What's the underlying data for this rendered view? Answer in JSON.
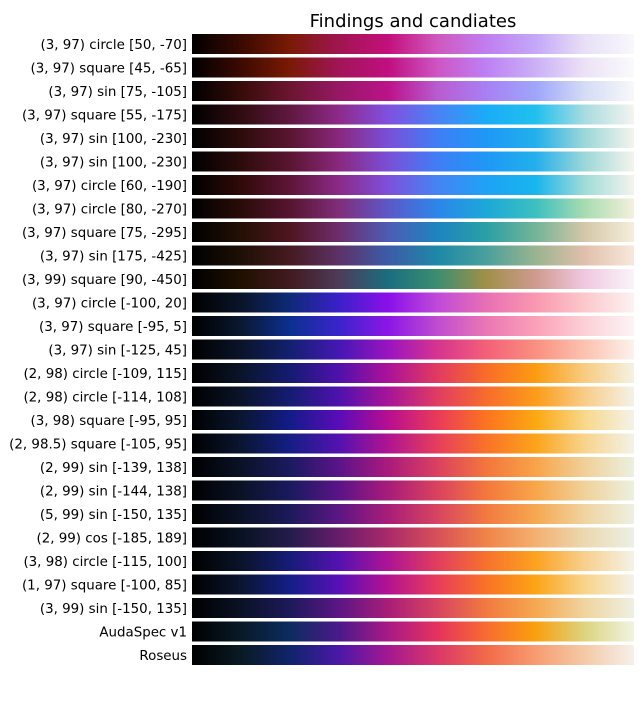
{
  "chart_data": {
    "type": "heatmap",
    "title": "Findings and candiates",
    "xlabel": "",
    "ylabel": "",
    "grid": false,
    "legend": "none",
    "rows": [
      {
        "label": "(3, 97) circle [50, -70]",
        "stops": [
          "#000000",
          "#3a0a00",
          "#7a1a05",
          "#a01550",
          "#c4107c",
          "#cf58bf",
          "#c07ef0",
          "#c4a8f8",
          "#e8e0f6",
          "#f8f8fc"
        ]
      },
      {
        "label": "(3, 97) square [45, -65]",
        "stops": [
          "#000000",
          "#3c0a00",
          "#7a1a04",
          "#a21458",
          "#c00f80",
          "#ce55c4",
          "#bd80f5",
          "#cbb0f6",
          "#ece2f6",
          "#fafafc"
        ]
      },
      {
        "label": "(3, 97) sin [75, -105]",
        "stops": [
          "#000000",
          "#360c08",
          "#6c1530",
          "#961865",
          "#bd128a",
          "#b85cd0",
          "#a880f4",
          "#9fa6fa",
          "#d4dcf6",
          "#f8f8fa"
        ]
      },
      {
        "label": "(3, 97) square [55, -175]",
        "stops": [
          "#000000",
          "#300c10",
          "#601840",
          "#8e2a8a",
          "#8050e0",
          "#4a82f4",
          "#1aacf8",
          "#20c0ee",
          "#a8dce0",
          "#f4f4f0"
        ]
      },
      {
        "label": "(3, 97) sin [100, -230]",
        "stops": [
          "#000000",
          "#2c0c0a",
          "#5a1530",
          "#8a287e",
          "#7a4fd8",
          "#3f7ef6",
          "#1e98f6",
          "#22b0ec",
          "#9cd8d8",
          "#f4f4ee"
        ]
      },
      {
        "label": "(3, 97) sin [100, -230]",
        "stops": [
          "#000000",
          "#2c0c0a",
          "#5a1530",
          "#8a287e",
          "#7a4fd8",
          "#3f7ef6",
          "#1e98f6",
          "#22b0ec",
          "#9cd8d8",
          "#f4f4ee"
        ]
      },
      {
        "label": "(3, 97) circle [60, -190]",
        "stops": [
          "#000000",
          "#300a08",
          "#5e1538",
          "#8c2a88",
          "#7e50dc",
          "#4584f4",
          "#1ea2f6",
          "#18b6ee",
          "#a0dcd8",
          "#f4f4ee"
        ]
      },
      {
        "label": "(3, 97) circle [80, -270]",
        "stops": [
          "#000000",
          "#2a0c06",
          "#561530",
          "#802e7a",
          "#5c58c8",
          "#2c86ea",
          "#1ca8d8",
          "#3cc0c0",
          "#a8dcb0",
          "#f4f0dc"
        ]
      },
      {
        "label": "(3, 97) square [75, -295]",
        "stops": [
          "#000000",
          "#241004",
          "#501520",
          "#6e2e6e",
          "#4d5cb4",
          "#1e84c0",
          "#2aa0a6",
          "#74b498",
          "#d4c8a8",
          "#f6eedc"
        ]
      },
      {
        "label": "(3, 97) sin [175, -425]",
        "stops": [
          "#000000",
          "#1e1004",
          "#461a20",
          "#5c3268",
          "#3c5ca8",
          "#1e88a8",
          "#4aa09c",
          "#9ab490",
          "#e0c0ac",
          "#f8e8dc"
        ]
      },
      {
        "label": "(3, 99) square [90, -450]",
        "stops": [
          "#000000",
          "#201000",
          "#421a20",
          "#4e3c5a",
          "#1a6e80",
          "#3c8e70",
          "#a09048",
          "#d09a90",
          "#f0c8e0",
          "#faf4fa"
        ]
      },
      {
        "label": "(3, 97) circle [-100, 20]",
        "stops": [
          "#000000",
          "#0a1428",
          "#0e2a78",
          "#3a20c8",
          "#8a10ea",
          "#c04ad8",
          "#e870b4",
          "#fa98b0",
          "#fcc8cc",
          "#fcf2f2"
        ]
      },
      {
        "label": "(3, 97) square [-95, 5]",
        "stops": [
          "#000000",
          "#0a1830",
          "#0c3090",
          "#3a24cc",
          "#8c16e6",
          "#c04cd0",
          "#ea78b4",
          "#fca0b8",
          "#fcd0d6",
          "#fcf4f6"
        ]
      },
      {
        "label": "(3, 97) sin [-125, 45]",
        "stops": [
          "#000000",
          "#0a1428",
          "#122070",
          "#4418b4",
          "#9a14c0",
          "#d6348e",
          "#f46078",
          "#fa9080",
          "#fcc2b0",
          "#fcf2ec"
        ]
      },
      {
        "label": "(2, 98) circle [-109, 115]",
        "stops": [
          "#000000",
          "#0a1428",
          "#141c70",
          "#5010ae",
          "#ac1298",
          "#e23a60",
          "#fa6c28",
          "#fc9c10",
          "#f8cc80",
          "#f4f2e4"
        ]
      },
      {
        "label": "(2, 98) circle [-114, 108]",
        "stops": [
          "#000000",
          "#0a1428",
          "#141c72",
          "#4e12ae",
          "#a81498",
          "#e03c62",
          "#f86c2c",
          "#fc9c18",
          "#f8cc88",
          "#f4f2e6"
        ]
      },
      {
        "label": "(3, 98) square [-95, 95]",
        "stops": [
          "#000000",
          "#0a1630",
          "#121c88",
          "#5a0cb8",
          "#b80e90",
          "#ea3a5a",
          "#fc7420",
          "#fca810",
          "#f8d88a",
          "#f4f2e8"
        ]
      },
      {
        "label": "(2, 98.5) square [-105, 95]",
        "stops": [
          "#000000",
          "#0a1630",
          "#141e84",
          "#5412b0",
          "#b01490",
          "#e63e5c",
          "#fa7228",
          "#fca41a",
          "#f8d48c",
          "#f4f2e8"
        ]
      },
      {
        "label": "(2, 99) sin [-139, 138]",
        "stops": [
          "#000000",
          "#0a1226",
          "#1a1a60",
          "#5a148a",
          "#aa1a7c",
          "#dc4060",
          "#f4763c",
          "#f8a448",
          "#f0d098",
          "#ecf0e0"
        ]
      },
      {
        "label": "(2, 99) sin [-144, 138]",
        "stops": [
          "#000000",
          "#0a1226",
          "#1a1a5e",
          "#5a1488",
          "#a81c7a",
          "#da425e",
          "#f4783c",
          "#f8a64a",
          "#f0d29a",
          "#ecf0e0"
        ]
      },
      {
        "label": "(5, 99) sin [-150, 135]",
        "stops": [
          "#000000",
          "#0a1226",
          "#1c1a5a",
          "#5c1684",
          "#a81e78",
          "#d84460",
          "#f27a40",
          "#f6a850",
          "#f0d4a0",
          "#eef0e2"
        ]
      },
      {
        "label": "(2, 99) cos [-185, 189]",
        "stops": [
          "#000000",
          "#081222",
          "#241c4c",
          "#681c6c",
          "#aa2a6a",
          "#d85058",
          "#f08448",
          "#f4b070",
          "#ecd8b0",
          "#ecf0e4"
        ]
      },
      {
        "label": "(3, 98) circle [-115, 100]",
        "stops": [
          "#000000",
          "#0a1428",
          "#161c78",
          "#5412b0",
          "#ae1494",
          "#e23e5e",
          "#f8722c",
          "#fca220",
          "#f8d08e",
          "#f4f2e6"
        ]
      },
      {
        "label": "(1, 97) square [-100, 85]",
        "stops": [
          "#000000",
          "#0a1630",
          "#141e88",
          "#5810b6",
          "#b41290",
          "#e83c5c",
          "#fa7226",
          "#fca416",
          "#f8d48a",
          "#f4f2e8"
        ]
      },
      {
        "label": "(3, 99) sin [-150, 135]",
        "stops": [
          "#000000",
          "#0a1226",
          "#1c1a5a",
          "#5c1684",
          "#a81e78",
          "#d84460",
          "#f27a40",
          "#f6a850",
          "#f0d4a0",
          "#eef0e2"
        ]
      },
      {
        "label": "AudaSpec v1",
        "stops": [
          "#000000",
          "#081a28",
          "#0c2c60",
          "#4a1a8a",
          "#a81a86",
          "#e6325e",
          "#f86c30",
          "#faa00c",
          "#dcd480",
          "#f0f4e0"
        ]
      },
      {
        "label": "Roseus",
        "stops": [
          "#000000",
          "#0a1a24",
          "#10246a",
          "#4a18a8",
          "#a41890",
          "#da3868",
          "#f26a48",
          "#f89c70",
          "#f4caa8",
          "#f6f0ea"
        ]
      }
    ]
  }
}
